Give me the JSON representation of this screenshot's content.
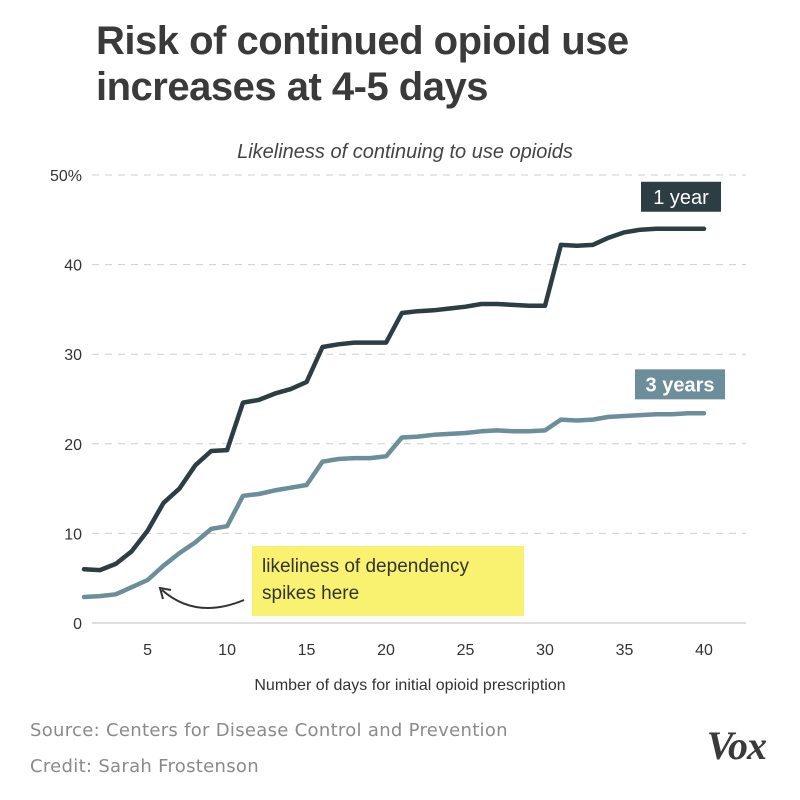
{
  "title": "Risk of continued opioid use increases at 4-5 days",
  "footer": {
    "source": "Source: Centers for Disease Control and Prevention",
    "credit": "Credit: Sarah Frostenson",
    "logo": "Vox"
  },
  "annotation": {
    "line1": "likeliness of dependency",
    "line2": "spikes here",
    "background": "#f8f270"
  },
  "chart_data": {
    "type": "line",
    "subtitle": "Likeliness of continuing to use opioids",
    "xlabel": "Number of days for initial opioid prescription",
    "ylabel": "",
    "xlim": [
      1,
      41
    ],
    "ylim": [
      0,
      50
    ],
    "x_ticks": [
      5,
      10,
      15,
      20,
      25,
      30,
      35,
      40
    ],
    "y_ticks": [
      0,
      10,
      20,
      30,
      40,
      50
    ],
    "y_tick_labels": [
      "0",
      "10",
      "20",
      "30",
      "40",
      "50%"
    ],
    "grid": "horizontal dashed",
    "series": [
      {
        "name": "1 year",
        "color": "#2c3d44",
        "points": [
          [
            1,
            6.0
          ],
          [
            2,
            5.9
          ],
          [
            3,
            6.6
          ],
          [
            4,
            8.0
          ],
          [
            5,
            10.3
          ],
          [
            6,
            13.4
          ],
          [
            7,
            15.0
          ],
          [
            8,
            17.6
          ],
          [
            9,
            19.2
          ],
          [
            10,
            19.3
          ],
          [
            11,
            24.6
          ],
          [
            12,
            24.9
          ],
          [
            13,
            25.6
          ],
          [
            14,
            26.1
          ],
          [
            15,
            26.9
          ],
          [
            16,
            30.8
          ],
          [
            17,
            31.1
          ],
          [
            18,
            31.3
          ],
          [
            19,
            31.3
          ],
          [
            20,
            31.3
          ],
          [
            21,
            34.6
          ],
          [
            22,
            34.8
          ],
          [
            23,
            34.9
          ],
          [
            24,
            35.1
          ],
          [
            25,
            35.3
          ],
          [
            26,
            35.6
          ],
          [
            27,
            35.6
          ],
          [
            28,
            35.5
          ],
          [
            29,
            35.4
          ],
          [
            30,
            35.4
          ],
          [
            31,
            42.2
          ],
          [
            32,
            42.1
          ],
          [
            33,
            42.2
          ],
          [
            34,
            43.0
          ],
          [
            35,
            43.6
          ],
          [
            36,
            43.9
          ],
          [
            37,
            44.0
          ],
          [
            38,
            44.0
          ],
          [
            39,
            44.0
          ],
          [
            40,
            44.0
          ]
        ]
      },
      {
        "name": "3 years",
        "color": "#6c8e9b",
        "points": [
          [
            1,
            2.9
          ],
          [
            2,
            3.0
          ],
          [
            3,
            3.2
          ],
          [
            4,
            4.0
          ],
          [
            5,
            4.8
          ],
          [
            6,
            6.4
          ],
          [
            7,
            7.8
          ],
          [
            8,
            9.0
          ],
          [
            9,
            10.5
          ],
          [
            10,
            10.8
          ],
          [
            11,
            14.2
          ],
          [
            12,
            14.4
          ],
          [
            13,
            14.8
          ],
          [
            14,
            15.1
          ],
          [
            15,
            15.4
          ],
          [
            16,
            18.0
          ],
          [
            17,
            18.3
          ],
          [
            18,
            18.4
          ],
          [
            19,
            18.4
          ],
          [
            20,
            18.6
          ],
          [
            21,
            20.7
          ],
          [
            22,
            20.8
          ],
          [
            23,
            21.0
          ],
          [
            24,
            21.1
          ],
          [
            25,
            21.2
          ],
          [
            26,
            21.4
          ],
          [
            27,
            21.5
          ],
          [
            28,
            21.4
          ],
          [
            29,
            21.4
          ],
          [
            30,
            21.5
          ],
          [
            31,
            22.7
          ],
          [
            32,
            22.6
          ],
          [
            33,
            22.7
          ],
          [
            34,
            23.0
          ],
          [
            35,
            23.1
          ],
          [
            36,
            23.2
          ],
          [
            37,
            23.3
          ],
          [
            38,
            23.3
          ],
          [
            39,
            23.4
          ],
          [
            40,
            23.4
          ]
        ]
      }
    ]
  }
}
